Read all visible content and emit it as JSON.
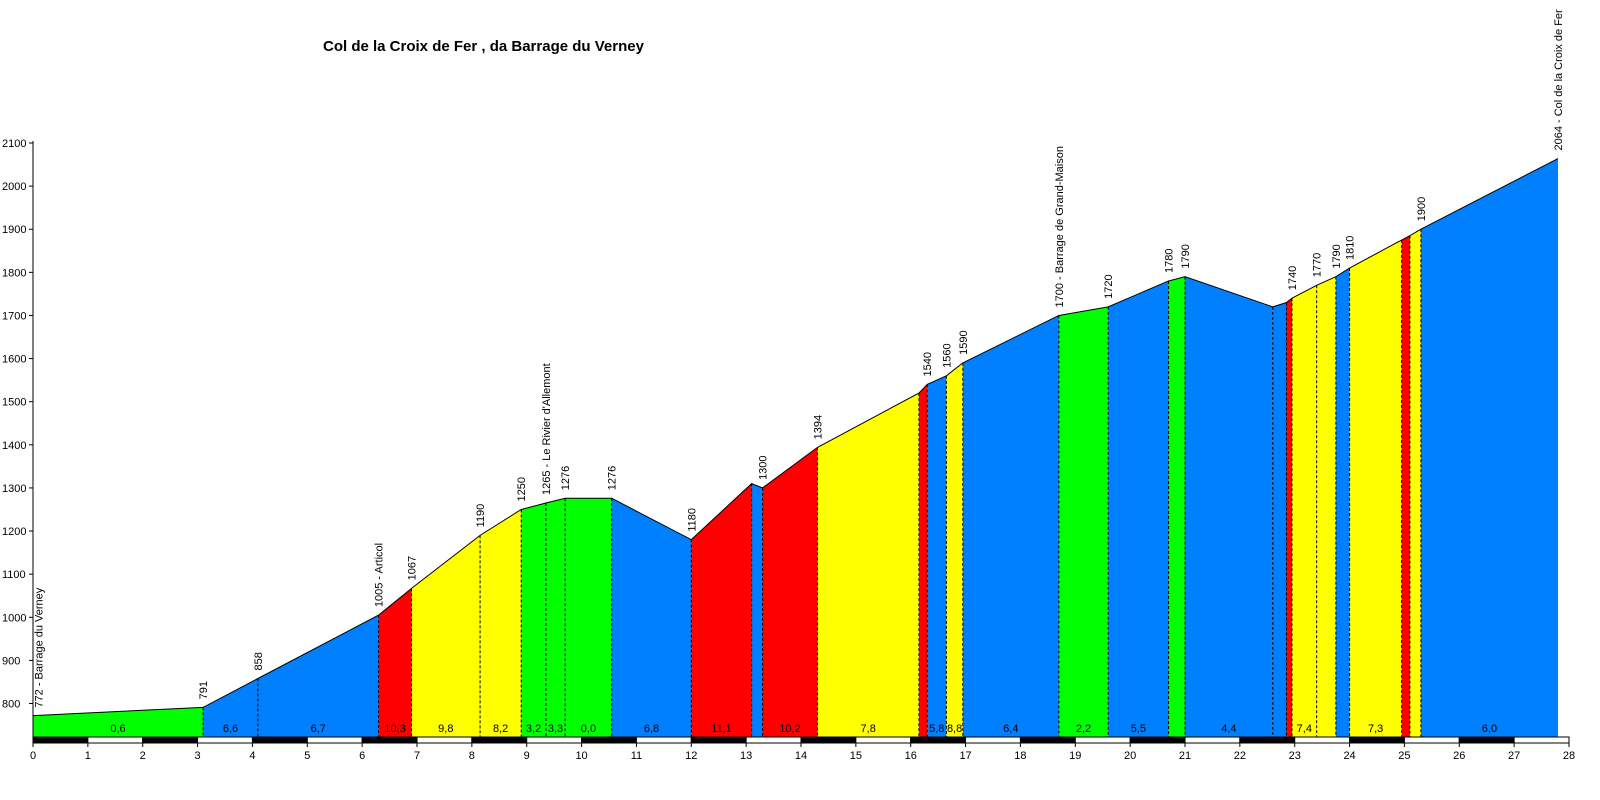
{
  "chart_data": {
    "type": "area",
    "title": "Col de la Croix de Fer , da Barrage du Verney",
    "xlabel": "",
    "ylabel": "",
    "xlim": [
      0,
      28
    ],
    "ylim": [
      720,
      2100
    ],
    "x_ticks": [
      "0",
      "1",
      "2",
      "3",
      "4",
      "5",
      "6",
      "7",
      "8",
      "9",
      "10",
      "11",
      "12",
      "13",
      "14",
      "15",
      "16",
      "17",
      "18",
      "19",
      "20",
      "21",
      "22",
      "23",
      "24",
      "25",
      "26",
      "27",
      "28"
    ],
    "y_ticks": [
      "800",
      "900",
      "1000",
      "1100",
      "1200",
      "1300",
      "1400",
      "1500",
      "1600",
      "1700",
      "1800",
      "1900",
      "2000",
      "2100"
    ],
    "grid": false,
    "gradient_colors": {
      "green": "#00ff00",
      "blue": "#0080ff",
      "yellow": "#ffff00",
      "red": "#ff0000"
    },
    "segments": [
      {
        "x0": 0.0,
        "x1": 3.1,
        "y0": 772,
        "y1": 791,
        "color": "green",
        "gradient": "0,6"
      },
      {
        "x0": 3.1,
        "x1": 4.1,
        "y0": 791,
        "y1": 858,
        "color": "blue",
        "gradient": "6,6"
      },
      {
        "x0": 4.1,
        "x1": 6.3,
        "y0": 858,
        "y1": 1005,
        "color": "blue",
        "gradient": "6,7"
      },
      {
        "x0": 6.3,
        "x1": 6.9,
        "y0": 1005,
        "y1": 1067,
        "color": "red",
        "gradient": "10,3"
      },
      {
        "x0": 6.9,
        "x1": 8.15,
        "y0": 1067,
        "y1": 1190,
        "color": "yellow",
        "gradient": "9,8"
      },
      {
        "x0": 8.15,
        "x1": 8.9,
        "y0": 1190,
        "y1": 1250,
        "color": "yellow",
        "gradient": "8,2"
      },
      {
        "x0": 8.9,
        "x1": 9.35,
        "y0": 1250,
        "y1": 1265,
        "color": "green",
        "gradient": "3,2"
      },
      {
        "x0": 9.35,
        "x1": 9.7,
        "y0": 1265,
        "y1": 1276,
        "color": "green",
        "gradient": "3,3"
      },
      {
        "x0": 9.7,
        "x1": 10.55,
        "y0": 1276,
        "y1": 1276,
        "color": "green",
        "gradient": "0,0"
      },
      {
        "x0": 10.55,
        "x1": 12.0,
        "y0": 1276,
        "y1": 1180,
        "color": "blue",
        "gradient": "6,8"
      },
      {
        "x0": 12.0,
        "x1": 13.1,
        "y0": 1180,
        "y1": 1310,
        "color": "red",
        "gradient": "11,1"
      },
      {
        "x0": 13.1,
        "x1": 13.3,
        "y0": 1310,
        "y1": 1300,
        "color": "blue",
        "gradient": ""
      },
      {
        "x0": 13.3,
        "x1": 14.3,
        "y0": 1300,
        "y1": 1394,
        "color": "red",
        "gradient": "10,2"
      },
      {
        "x0": 14.3,
        "x1": 16.15,
        "y0": 1394,
        "y1": 1520,
        "color": "yellow",
        "gradient": "7,8"
      },
      {
        "x0": 16.15,
        "x1": 16.3,
        "y0": 1520,
        "y1": 1540,
        "color": "red",
        "gradient": ""
      },
      {
        "x0": 16.3,
        "x1": 16.65,
        "y0": 1540,
        "y1": 1560,
        "color": "blue",
        "gradient": "5,8"
      },
      {
        "x0": 16.65,
        "x1": 16.95,
        "y0": 1560,
        "y1": 1590,
        "color": "yellow",
        "gradient": "8,8"
      },
      {
        "x0": 16.95,
        "x1": 18.7,
        "y0": 1590,
        "y1": 1700,
        "color": "blue",
        "gradient": "6,4"
      },
      {
        "x0": 18.7,
        "x1": 19.6,
        "y0": 1700,
        "y1": 1720,
        "color": "green",
        "gradient": "2,2"
      },
      {
        "x0": 19.6,
        "x1": 20.7,
        "y0": 1720,
        "y1": 1780,
        "color": "blue",
        "gradient": "5,5"
      },
      {
        "x0": 20.7,
        "x1": 21.0,
        "y0": 1780,
        "y1": 1790,
        "color": "green",
        "gradient": ""
      },
      {
        "x0": 21.0,
        "x1": 22.6,
        "y0": 1790,
        "y1": 1720,
        "color": "blue",
        "gradient": "4,4"
      },
      {
        "x0": 22.6,
        "x1": 22.85,
        "y0": 1720,
        "y1": 1730,
        "color": "blue",
        "gradient": ""
      },
      {
        "x0": 22.85,
        "x1": 22.95,
        "y0": 1730,
        "y1": 1740,
        "color": "red",
        "gradient": ""
      },
      {
        "x0": 22.95,
        "x1": 23.4,
        "y0": 1740,
        "y1": 1770,
        "color": "yellow",
        "gradient": "7,4"
      },
      {
        "x0": 23.4,
        "x1": 23.75,
        "y0": 1770,
        "y1": 1790,
        "color": "yellow",
        "gradient": ""
      },
      {
        "x0": 23.75,
        "x1": 24.0,
        "y0": 1790,
        "y1": 1810,
        "color": "blue",
        "gradient": ""
      },
      {
        "x0": 24.0,
        "x1": 24.95,
        "y0": 1810,
        "y1": 1875,
        "color": "yellow",
        "gradient": "7,3"
      },
      {
        "x0": 24.95,
        "x1": 25.1,
        "y0": 1875,
        "y1": 1885,
        "color": "red",
        "gradient": ""
      },
      {
        "x0": 25.1,
        "x1": 25.3,
        "y0": 1885,
        "y1": 1900,
        "color": "yellow",
        "gradient": ""
      },
      {
        "x0": 25.3,
        "x1": 27.8,
        "y0": 1900,
        "y1": 2064,
        "color": "blue",
        "gradient": "6,0"
      }
    ],
    "altitude_labels": [
      {
        "x": 0.1,
        "y": 772,
        "text": "772 - Barrage du Verney"
      },
      {
        "x": 3.1,
        "y": 791,
        "text": "791"
      },
      {
        "x": 4.1,
        "y": 858,
        "text": "858"
      },
      {
        "x": 6.3,
        "y": 1005,
        "text": "1005 - Articol"
      },
      {
        "x": 6.9,
        "y": 1067,
        "text": "1067"
      },
      {
        "x": 8.15,
        "y": 1190,
        "text": "1190"
      },
      {
        "x": 8.9,
        "y": 1250,
        "text": "1250"
      },
      {
        "x": 9.35,
        "y": 1265,
        "text": "1265 - Le Rivier d'Allemont"
      },
      {
        "x": 9.7,
        "y": 1276,
        "text": "1276"
      },
      {
        "x": 10.55,
        "y": 1276,
        "text": "1276"
      },
      {
        "x": 12.0,
        "y": 1180,
        "text": "1180"
      },
      {
        "x": 13.3,
        "y": 1300,
        "text": "1300"
      },
      {
        "x": 14.3,
        "y": 1394,
        "text": "1394"
      },
      {
        "x": 16.3,
        "y": 1540,
        "text": "1540"
      },
      {
        "x": 16.65,
        "y": 1560,
        "text": "1560"
      },
      {
        "x": 16.95,
        "y": 1590,
        "text": "1590"
      },
      {
        "x": 18.7,
        "y": 1700,
        "text": "1700 - Barrage de Grand-Maison"
      },
      {
        "x": 19.6,
        "y": 1720,
        "text": "1720"
      },
      {
        "x": 20.7,
        "y": 1780,
        "text": "1780"
      },
      {
        "x": 21.0,
        "y": 1790,
        "text": "1790"
      },
      {
        "x": 22.95,
        "y": 1740,
        "text": "1740"
      },
      {
        "x": 23.4,
        "y": 1770,
        "text": "1770"
      },
      {
        "x": 23.75,
        "y": 1790,
        "text": "1790"
      },
      {
        "x": 24.0,
        "y": 1810,
        "text": "1810"
      },
      {
        "x": 25.3,
        "y": 1900,
        "text": "1900"
      },
      {
        "x": 27.8,
        "y": 2064,
        "text": "2064 - Col de la Croix de Fer"
      }
    ]
  }
}
